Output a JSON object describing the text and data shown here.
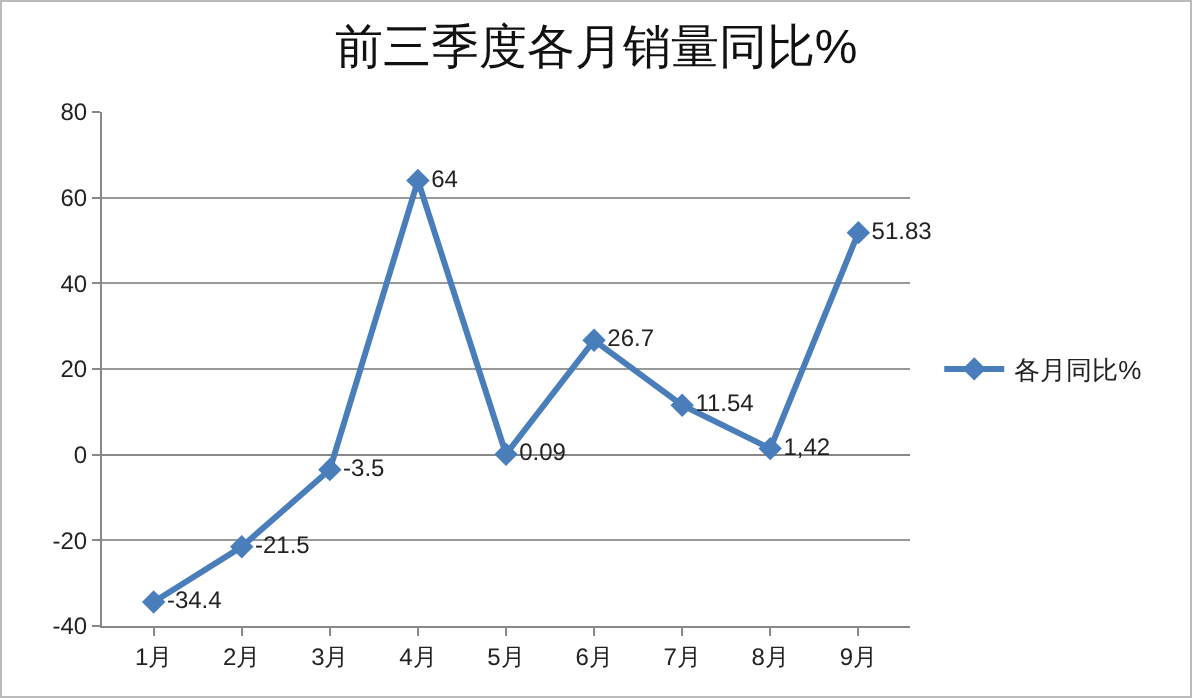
{
  "chart_data": {
    "type": "line",
    "title": "前三季度各月销量同比%",
    "categories": [
      "1月",
      "2月",
      "3月",
      "4月",
      "5月",
      "6月",
      "7月",
      "8月",
      "9月"
    ],
    "series": [
      {
        "name": "各月同比%",
        "color": "#4a7ebb",
        "values": [
          -34.4,
          -21.5,
          -3.5,
          64,
          0.09,
          26.7,
          11.54,
          1.42,
          51.83
        ],
        "value_labels": [
          "-34.4",
          "-21.5",
          "-3.5",
          "64",
          "0.09",
          "26.7",
          "11.54",
          "1,42",
          "51.83"
        ]
      }
    ],
    "ylim": [
      -40,
      80
    ],
    "yticks": [
      -40,
      -20,
      0,
      20,
      40,
      60,
      80
    ],
    "grid": "y",
    "legend": "right",
    "marker": "diamond",
    "line_style": "solid"
  }
}
